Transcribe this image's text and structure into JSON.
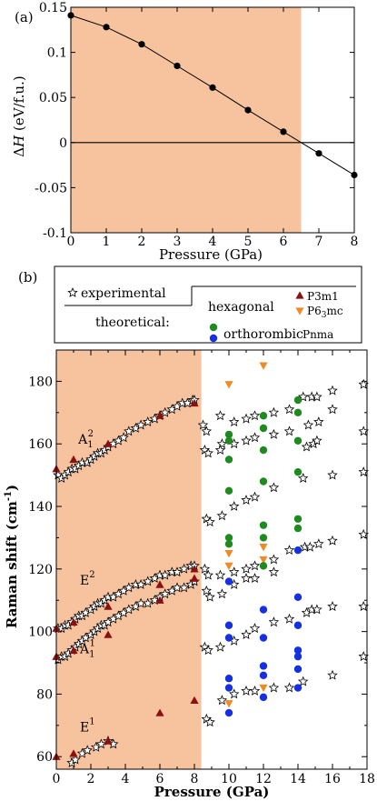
{
  "chart_data": [
    {
      "panel": "(a)",
      "type": "line",
      "xlabel": "Pressure (GPa)",
      "ylabel": "ΔH (eV/f.u.)",
      "xlim": [
        0,
        8
      ],
      "ylim": [
        -0.1,
        0.15
      ],
      "x_ticks": [
        "0",
        "1",
        "2",
        "3",
        "4",
        "5",
        "6",
        "7",
        "8"
      ],
      "y_ticks": [
        "-0.1",
        "-0.05",
        "0",
        "0.05",
        "0.1",
        "0.15"
      ],
      "shaded_region": {
        "x": [
          0,
          6.5
        ],
        "color": "#f7c29e"
      },
      "zero_line": true,
      "series": [
        {
          "x": [
            0,
            1,
            2,
            3,
            4,
            5,
            6,
            7,
            8
          ],
          "y": [
            0.141,
            0.128,
            0.109,
            0.085,
            0.061,
            0.036,
            0.012,
            -0.012,
            -0.036
          ]
        }
      ]
    },
    {
      "panel": "(b)",
      "type": "scatter",
      "xlabel": "Pressure (GPa)",
      "ylabel": "Raman shift (cm⁻¹)",
      "xlim": [
        0,
        18
      ],
      "ylim": [
        56,
        190
      ],
      "x_ticks": [
        "0",
        "2",
        "4",
        "6",
        "8",
        "10",
        "12",
        "14",
        "16",
        "18"
      ],
      "y_ticks": [
        "60",
        "80",
        "100",
        "120",
        "140",
        "160",
        "180"
      ],
      "shaded_region": {
        "x": [
          0,
          8.4
        ],
        "color": "#f7c29e"
      },
      "legend": {
        "experimental": "experimental",
        "theoretical": "theoretical:",
        "hexagonal": "hexagonal",
        "orthorombic": "orthorombic",
        "p3m1": "P3m1",
        "p63mc_base": "P6",
        "p63mc_sub": "3",
        "p63mc_tail": "mc",
        "pnma": "Pnma"
      },
      "mode_labels": [
        {
          "base": "A",
          "sub": "1",
          "sup": "2",
          "x": 1.9,
          "y": 160
        },
        {
          "base": "E",
          "sub": "",
          "sup": "2",
          "x": 2.0,
          "y": 115
        },
        {
          "base": "A",
          "sub": "1",
          "sup": "1",
          "x": 2.0,
          "y": 93
        },
        {
          "base": "E",
          "sub": "",
          "sup": "1",
          "x": 2.0,
          "y": 68
        }
      ],
      "series": [
        {
          "name": "experimental",
          "marker": "star",
          "color": "#000000",
          "points": [
            [
              0.1,
              150
            ],
            [
              0.3,
              149
            ],
            [
              0.5,
              150
            ],
            [
              0.7,
              151
            ],
            [
              0.9,
              152
            ],
            [
              1.1,
              152
            ],
            [
              1.3,
              153
            ],
            [
              1.5,
              154
            ],
            [
              1.8,
              154
            ],
            [
              2.0,
              155
            ],
            [
              2.2,
              156
            ],
            [
              2.4,
              157
            ],
            [
              2.6,
              157
            ],
            [
              2.8,
              158
            ],
            [
              3.0,
              159
            ],
            [
              3.3,
              160
            ],
            [
              3.6,
              161
            ],
            [
              3.9,
              162
            ],
            [
              4.2,
              164
            ],
            [
              4.6,
              165
            ],
            [
              4.9,
              166
            ],
            [
              5.3,
              167
            ],
            [
              5.7,
              168
            ],
            [
              6.0,
              169
            ],
            [
              6.3,
              170
            ],
            [
              6.7,
              171
            ],
            [
              7.0,
              172
            ],
            [
              7.3,
              173
            ],
            [
              7.6,
              173
            ],
            [
              7.9,
              174
            ],
            [
              8.0,
              174
            ],
            [
              0.1,
              101
            ],
            [
              0.3,
              101
            ],
            [
              0.5,
              102
            ],
            [
              0.7,
              102
            ],
            [
              0.9,
              103
            ],
            [
              1.1,
              104
            ],
            [
              1.3,
              105
            ],
            [
              1.5,
              105
            ],
            [
              1.7,
              106
            ],
            [
              2.0,
              107
            ],
            [
              2.2,
              108
            ],
            [
              2.4,
              109
            ],
            [
              2.6,
              109
            ],
            [
              2.8,
              110
            ],
            [
              3.0,
              111
            ],
            [
              3.3,
              111
            ],
            [
              3.6,
              112
            ],
            [
              3.9,
              113
            ],
            [
              4.2,
              114
            ],
            [
              4.6,
              115
            ],
            [
              4.9,
              115
            ],
            [
              5.3,
              116
            ],
            [
              5.7,
              117
            ],
            [
              6.0,
              118
            ],
            [
              6.3,
              118
            ],
            [
              6.7,
              119
            ],
            [
              7.0,
              119
            ],
            [
              7.4,
              120
            ],
            [
              7.8,
              121
            ],
            [
              8.0,
              121
            ],
            [
              0.1,
              91
            ],
            [
              0.3,
              92
            ],
            [
              0.5,
              92
            ],
            [
              0.7,
              93
            ],
            [
              0.9,
              94
            ],
            [
              1.1,
              95
            ],
            [
              1.3,
              96
            ],
            [
              1.5,
              97
            ],
            [
              1.7,
              98
            ],
            [
              2.0,
              99
            ],
            [
              2.2,
              100
            ],
            [
              2.4,
              101
            ],
            [
              2.6,
              102
            ],
            [
              2.8,
              102
            ],
            [
              3.0,
              103
            ],
            [
              3.3,
              104
            ],
            [
              3.6,
              105
            ],
            [
              3.9,
              106
            ],
            [
              4.2,
              107
            ],
            [
              4.6,
              108
            ],
            [
              4.9,
              109
            ],
            [
              5.3,
              109
            ],
            [
              5.7,
              110
            ],
            [
              6.0,
              111
            ],
            [
              6.3,
              112
            ],
            [
              6.7,
              113
            ],
            [
              7.0,
              114
            ],
            [
              7.4,
              114
            ],
            [
              7.8,
              115
            ],
            [
              8.0,
              116
            ],
            [
              0.9,
              58
            ],
            [
              1.1,
              59
            ],
            [
              1.5,
              61
            ],
            [
              1.8,
              62
            ],
            [
              2.3,
              63
            ],
            [
              2.6,
              64
            ],
            [
              3.0,
              65
            ],
            [
              3.3,
              64
            ],
            [
              8.5,
              166
            ],
            [
              8.7,
              164
            ],
            [
              8.6,
              158
            ],
            [
              8.8,
              157
            ],
            [
              8.7,
              136
            ],
            [
              8.9,
              135
            ],
            [
              8.6,
              120
            ],
            [
              8.8,
              118
            ],
            [
              8.7,
              113
            ],
            [
              8.9,
              111
            ],
            [
              8.6,
              95
            ],
            [
              8.8,
              94
            ],
            [
              8.7,
              72
            ],
            [
              8.9,
              71
            ],
            [
              9.5,
              169
            ],
            [
              9.6,
              160
            ],
            [
              9.5,
              158
            ],
            [
              9.6,
              137
            ],
            [
              9.5,
              118
            ],
            [
              9.6,
              112
            ],
            [
              9.5,
              95
            ],
            [
              9.6,
              78
            ],
            [
              10.3,
              167
            ],
            [
              10.3,
              160
            ],
            [
              10.3,
              140
            ],
            [
              10.3,
              119
            ],
            [
              10.3,
              115
            ],
            [
              10.3,
              97
            ],
            [
              10.3,
              80
            ],
            [
              11.0,
              168
            ],
            [
              11.0,
              161
            ],
            [
              11.0,
              142
            ],
            [
              11.0,
              120
            ],
            [
              11.0,
              117
            ],
            [
              11.0,
              99
            ],
            [
              11.0,
              81
            ],
            [
              11.5,
              169
            ],
            [
              11.5,
              162
            ],
            [
              11.5,
              143
            ],
            [
              11.5,
              121
            ],
            [
              11.5,
              117
            ],
            [
              11.5,
              101
            ],
            [
              11.5,
              81
            ],
            [
              12.6,
              170
            ],
            [
              12.6,
              163
            ],
            [
              12.6,
              146
            ],
            [
              12.6,
              123
            ],
            [
              12.6,
              119
            ],
            [
              12.6,
              103
            ],
            [
              12.6,
              82
            ],
            [
              13.5,
              171
            ],
            [
              13.5,
              164
            ],
            [
              13.5,
              126
            ],
            [
              13.5,
              104
            ],
            [
              13.5,
              82
            ],
            [
              14.3,
              175
            ],
            [
              14.6,
              166
            ],
            [
              14.5,
              159
            ],
            [
              14.8,
              175
            ],
            [
              14.9,
              160
            ],
            [
              14.3,
              149
            ],
            [
              14.4,
              127
            ],
            [
              14.7,
              127
            ],
            [
              14.5,
              106
            ],
            [
              14.8,
              107
            ],
            [
              14.3,
              84
            ],
            [
              15.1,
              175
            ],
            [
              15.2,
              167
            ],
            [
              15.1,
              161
            ],
            [
              15.2,
              128
            ],
            [
              15.1,
              107
            ],
            [
              16.0,
              177
            ],
            [
              16.0,
              171
            ],
            [
              16.0,
              150
            ],
            [
              16.0,
              129
            ],
            [
              16.0,
              108
            ],
            [
              16.0,
              86
            ],
            [
              17.8,
              179
            ],
            [
              17.8,
              164
            ],
            [
              17.8,
              151
            ],
            [
              17.8,
              131
            ],
            [
              17.8,
              108
            ],
            [
              17.8,
              92
            ]
          ]
        },
        {
          "name": "P3m1",
          "marker": "triangle-up",
          "color": "#8b1010",
          "points": [
            [
              0,
              152
            ],
            [
              0,
              101
            ],
            [
              0,
              92
            ],
            [
              0,
              60
            ],
            [
              1,
              155
            ],
            [
              1,
              103
            ],
            [
              1,
              94
            ],
            [
              1,
              61
            ],
            [
              3,
              160
            ],
            [
              3,
              108
            ],
            [
              3,
              99
            ],
            [
              3,
              65
            ],
            [
              6,
              169
            ],
            [
              6,
              115
            ],
            [
              6,
              110
            ],
            [
              6,
              74
            ],
            [
              8,
              173
            ],
            [
              8,
              120
            ],
            [
              8,
              117
            ],
            [
              8,
              78
            ]
          ]
        },
        {
          "name": "P6_3mc",
          "marker": "triangle-down",
          "color": "#f08a24",
          "points": [
            [
              10,
              179
            ],
            [
              10,
              125
            ],
            [
              10,
              121
            ],
            [
              10,
              77
            ],
            [
              12,
              185
            ],
            [
              12,
              127
            ],
            [
              12,
              123
            ],
            [
              12,
              82
            ]
          ]
        },
        {
          "name": "hexagonal-green",
          "marker": "circle",
          "color": "#1f8a1f",
          "points": [
            [
              10,
              163
            ],
            [
              10,
              161
            ],
            [
              10,
              155
            ],
            [
              10,
              145
            ],
            [
              10,
              130
            ],
            [
              10,
              128
            ],
            [
              12,
              169
            ],
            [
              12,
              165
            ],
            [
              12,
              158
            ],
            [
              12,
              148
            ],
            [
              12,
              134
            ],
            [
              12,
              130
            ],
            [
              12,
              121
            ],
            [
              14,
              174
            ],
            [
              14,
              170
            ],
            [
              14,
              161
            ],
            [
              14,
              151
            ],
            [
              14,
              136
            ],
            [
              14,
              133
            ]
          ]
        },
        {
          "name": "Pnma",
          "marker": "circle",
          "color": "#1530e0",
          "points": [
            [
              10,
              116
            ],
            [
              10,
              102
            ],
            [
              10,
              98
            ],
            [
              10,
              85
            ],
            [
              10,
              82
            ],
            [
              10,
              74
            ],
            [
              12,
              107
            ],
            [
              12,
              98
            ],
            [
              12,
              89
            ],
            [
              12,
              86
            ],
            [
              12,
              79
            ],
            [
              14,
              126
            ],
            [
              14,
              111
            ],
            [
              14,
              102
            ],
            [
              14,
              94
            ],
            [
              14,
              92
            ],
            [
              14,
              88
            ],
            [
              14,
              82
            ]
          ]
        }
      ]
    }
  ]
}
